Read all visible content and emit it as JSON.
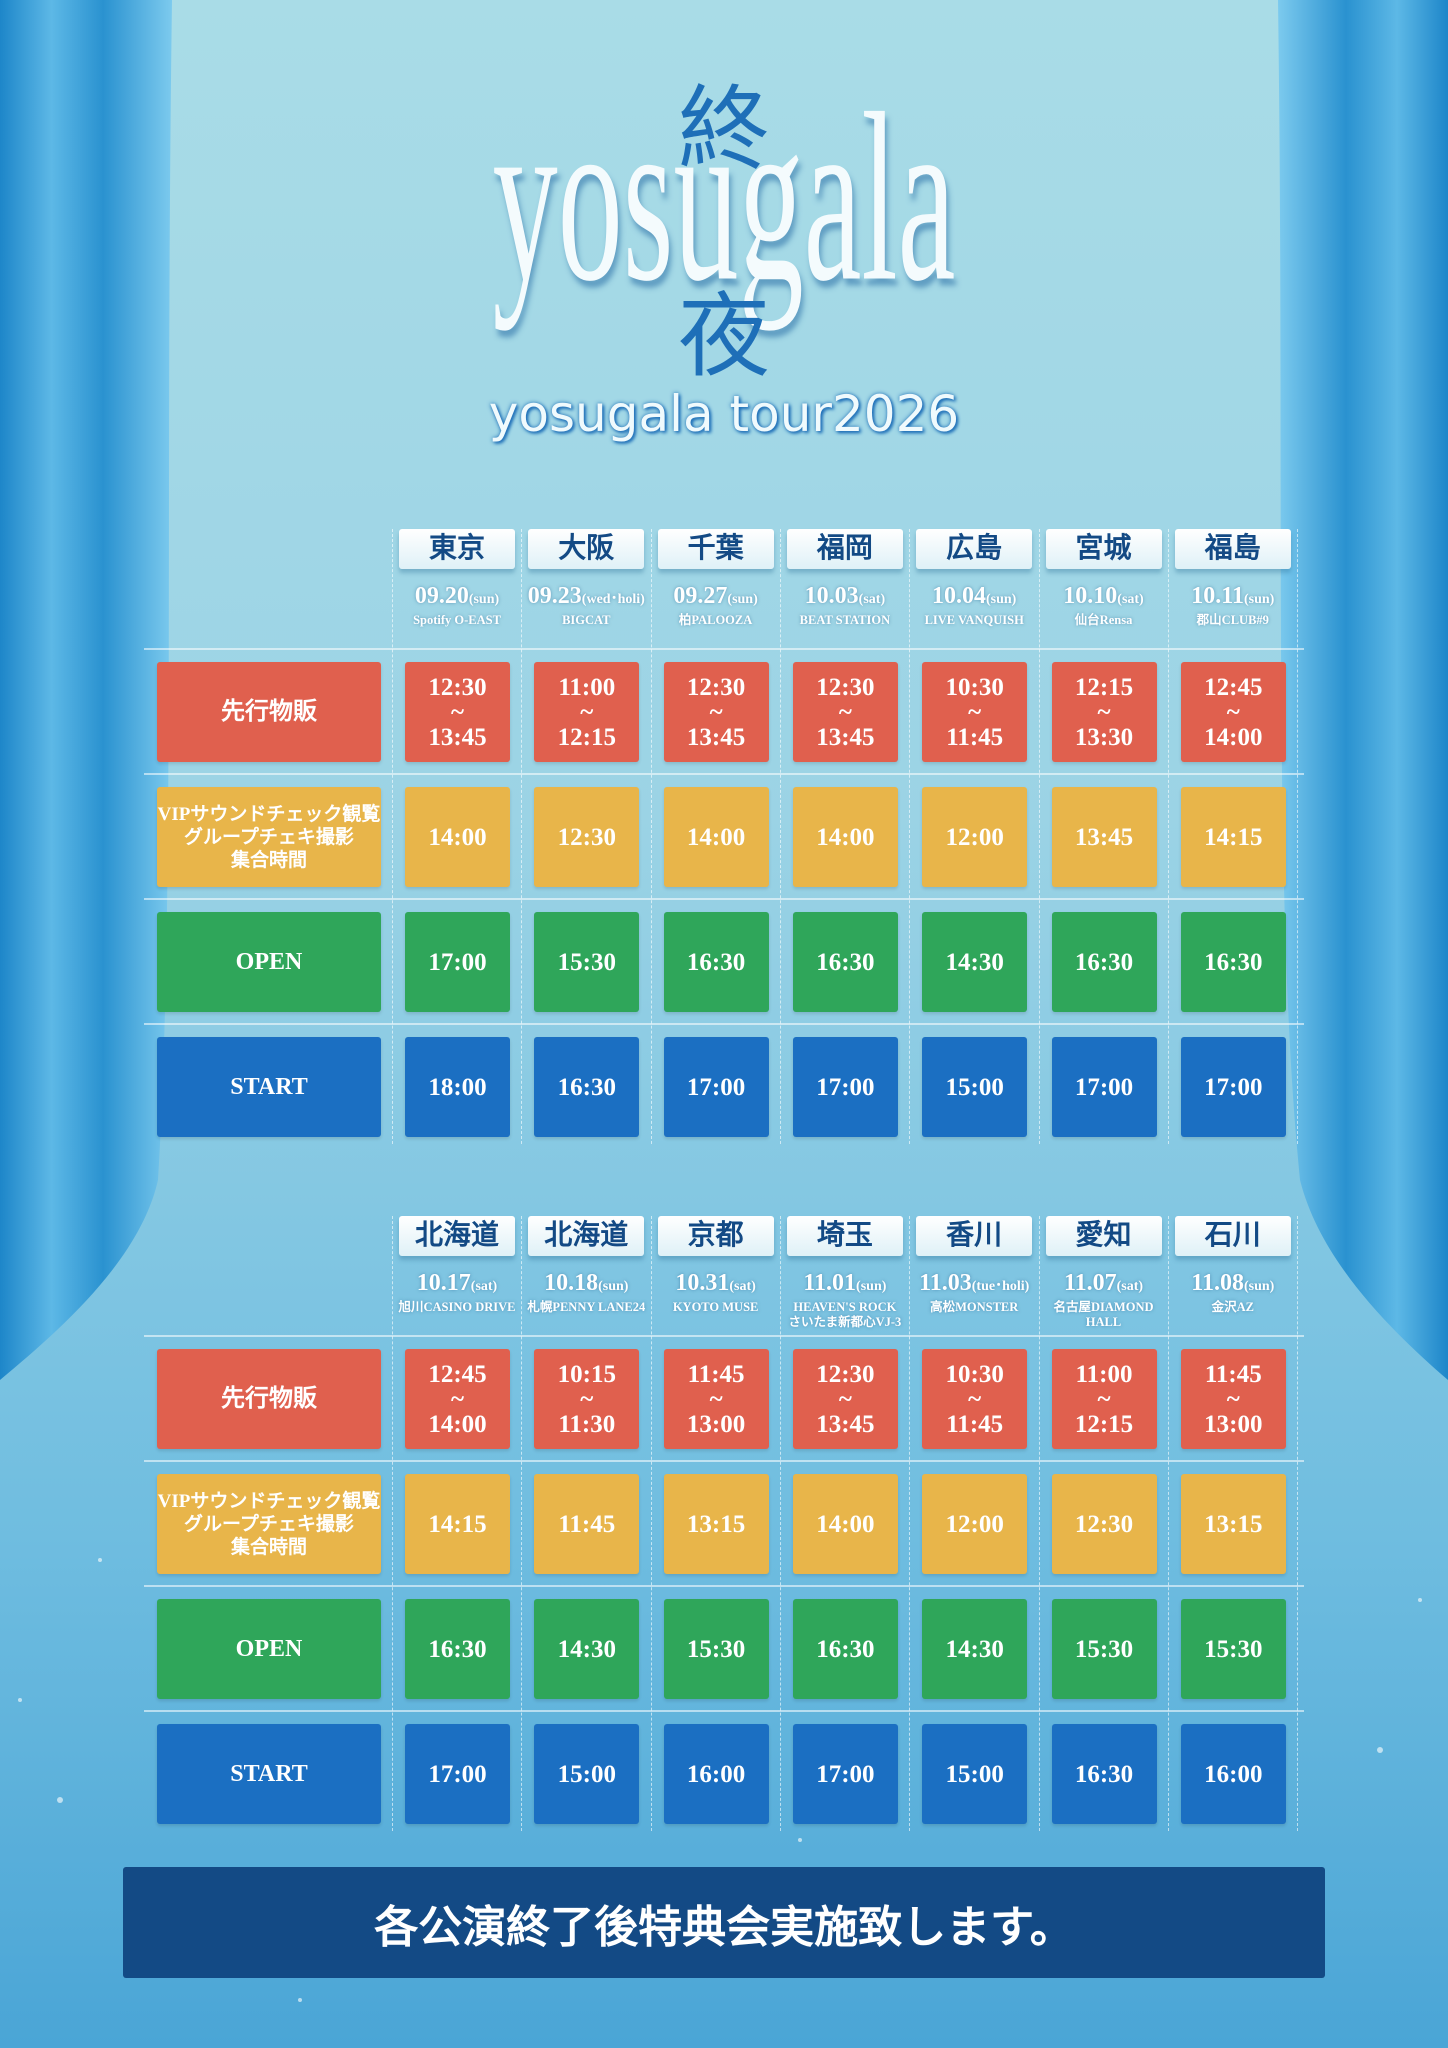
{
  "logo": {
    "kanji_top": "終",
    "wordmark": "yosugala",
    "kanji_bottom": "夜",
    "subtitle": "yosugala tour2026"
  },
  "schedules": [
    {
      "cities": [
        "東京",
        "大阪",
        "千葉",
        "福岡",
        "広島",
        "宮城",
        "福島"
      ],
      "dates": [
        "09.20",
        "09.23",
        "09.27",
        "10.03",
        "10.04",
        "10.10",
        "10.11"
      ],
      "days": [
        "(sun)",
        "(wed･holi)",
        "(sun)",
        "(sat)",
        "(sun)",
        "(sat)",
        "(sun)"
      ],
      "venues": [
        "Spotify O-EAST",
        "BIGCAT",
        "柏PALOOZA",
        "BEAT STATION",
        "LIVE VANQUISH",
        "仙台Rensa",
        "郡山CLUB#9"
      ],
      "rows": [
        {
          "label": "先行物販",
          "times": [
            "12:30\n~\n13:45",
            "11:00\n~\n12:15",
            "12:30\n~\n13:45",
            "12:30\n~\n13:45",
            "10:30\n~\n11:45",
            "12:15\n~\n13:30",
            "12:45\n~\n14:00"
          ]
        },
        {
          "label": "VIPサウンドチェック観覧\nグループチェキ撮影\n集合時間",
          "times": [
            "14:00",
            "12:30",
            "14:00",
            "14:00",
            "12:00",
            "13:45",
            "14:15"
          ]
        },
        {
          "label": "OPEN",
          "times": [
            "17:00",
            "15:30",
            "16:30",
            "16:30",
            "14:30",
            "16:30",
            "16:30"
          ]
        },
        {
          "label": "START",
          "times": [
            "18:00",
            "16:30",
            "17:00",
            "17:00",
            "15:00",
            "17:00",
            "17:00"
          ]
        }
      ]
    },
    {
      "cities": [
        "北海道",
        "北海道",
        "京都",
        "埼玉",
        "香川",
        "愛知",
        "石川"
      ],
      "dates": [
        "10.17",
        "10.18",
        "10.31",
        "11.01",
        "11.03",
        "11.07",
        "11.08"
      ],
      "days": [
        "(sat)",
        "(sun)",
        "(sat)",
        "(sun)",
        "(tue･holi)",
        "(sat)",
        "(sun)"
      ],
      "venues": [
        "旭川CASINO DRIVE",
        "札幌PENNY LANE24",
        "KYOTO MUSE",
        "HEAVEN'S ROCK\nさいたま新都心VJ-3",
        "高松MONSTER",
        "名古屋DIAMOND HALL",
        "金沢AZ"
      ],
      "rows": [
        {
          "label": "先行物販",
          "times": [
            "12:45\n~\n14:00",
            "10:15\n~\n11:30",
            "11:45\n~\n13:00",
            "12:30\n~\n13:45",
            "10:30\n~\n11:45",
            "11:00\n~\n12:15",
            "11:45\n~\n13:00"
          ]
        },
        {
          "label": "VIPサウンドチェック観覧\nグループチェキ撮影\n集合時間",
          "times": [
            "14:15",
            "11:45",
            "13:15",
            "14:00",
            "12:00",
            "12:30",
            "13:15"
          ]
        },
        {
          "label": "OPEN",
          "times": [
            "16:30",
            "14:30",
            "15:30",
            "16:30",
            "14:30",
            "15:30",
            "15:30"
          ]
        },
        {
          "label": "START",
          "times": [
            "17:00",
            "15:00",
            "16:00",
            "17:00",
            "15:00",
            "16:30",
            "16:00"
          ]
        }
      ]
    }
  ],
  "footer": "各公演終了後特典会実施致します。"
}
